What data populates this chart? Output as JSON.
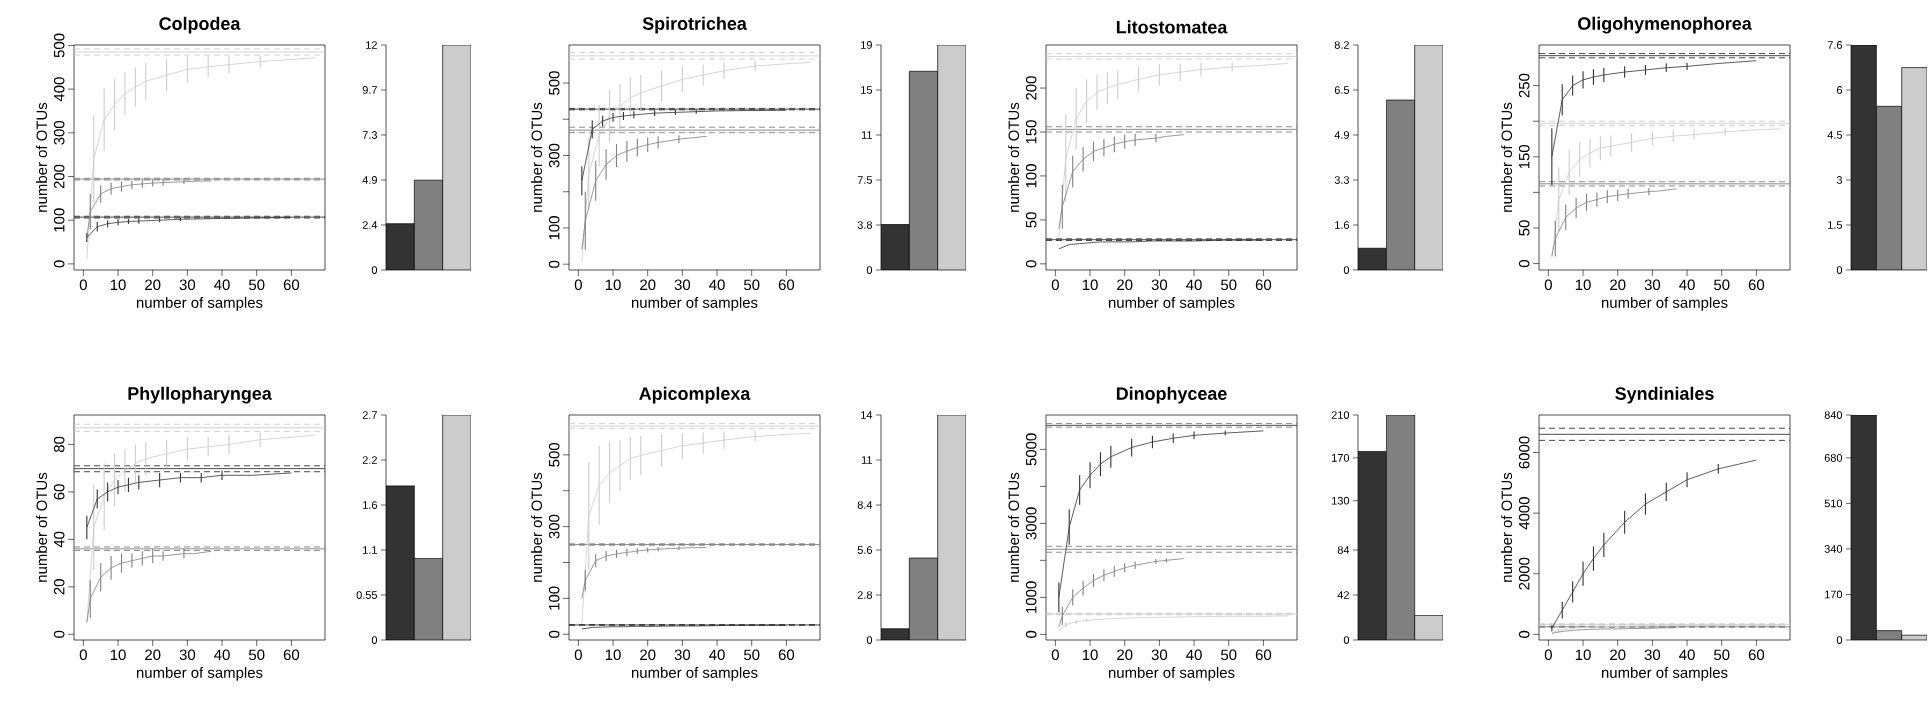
{
  "chart_data": [
    {
      "type": "line",
      "title": "Colpodea",
      "xlabel": "number of samples",
      "ylabel": "number of OTUs",
      "xlim": [
        -2.7,
        69.7
      ],
      "xticks": [
        0,
        10,
        20,
        30,
        40,
        50,
        60
      ],
      "ylim": [
        -14,
        501
      ],
      "yticks": [
        0,
        100,
        200,
        300,
        400,
        500
      ],
      "series": [
        {
          "color": "#333333",
          "x": [
            1,
            4,
            7,
            10,
            13,
            16,
            22,
            28,
            34,
            40,
            49,
            60
          ],
          "values": [
            60,
            85,
            92,
            95,
            97,
            98,
            100,
            102,
            103,
            104,
            105,
            106
          ],
          "errors": [
            10,
            11,
            8,
            7,
            6,
            6,
            5,
            4,
            null,
            null,
            null,
            null
          ]
        },
        {
          "color": "#808080",
          "x": [
            1,
            2,
            5,
            8,
            11,
            14,
            17,
            20,
            23,
            29,
            32,
            37
          ],
          "values": [
            60,
            120,
            160,
            172,
            177,
            181,
            183,
            185,
            186,
            188,
            189,
            190
          ],
          "errors": [
            null,
            40,
            20,
            14,
            12,
            10,
            9,
            8,
            7,
            5,
            null,
            null
          ]
        },
        {
          "color": "#cccccc",
          "x": [
            1,
            3,
            6,
            9,
            12,
            15,
            18,
            24,
            30,
            36,
            42,
            51,
            60,
            67
          ],
          "values": [
            10,
            240,
            330,
            365,
            390,
            405,
            418,
            432,
            445,
            451,
            456,
            463,
            468,
            472
          ],
          "errors": [
            null,
            100,
            72,
            58,
            50,
            45,
            42,
            36,
            30,
            24,
            19,
            14,
            null,
            null
          ]
        }
      ],
      "ref_lines": [
        {
          "axis": "y",
          "value": 107,
          "color": "#333333",
          "line_style": "solid"
        },
        {
          "axis": "y",
          "value": 105,
          "color": "#333333",
          "line_style": "dashed"
        },
        {
          "axis": "y",
          "value": 109,
          "color": "#333333",
          "line_style": "dashed"
        },
        {
          "axis": "y",
          "value": 194,
          "color": "#808080",
          "line_style": "solid"
        },
        {
          "axis": "y",
          "value": 192,
          "color": "#808080",
          "line_style": "dashed"
        },
        {
          "axis": "y",
          "value": 196,
          "color": "#808080",
          "line_style": "dashed"
        },
        {
          "axis": "y",
          "value": 485,
          "color": "#cccccc",
          "line_style": "solid"
        },
        {
          "axis": "y",
          "value": 478,
          "color": "#cccccc",
          "line_style": "dashed"
        },
        {
          "axis": "y",
          "value": 492,
          "color": "#cccccc",
          "line_style": "dashed"
        }
      ]
    },
    {
      "type": "bar",
      "categories": [
        null,
        null,
        null
      ],
      "values": [
        2.5,
        4.85,
        12.15
      ],
      "colors": [
        "#333333",
        "#808080",
        "#cccccc"
      ],
      "ylim": [
        0,
        12.15
      ],
      "yticks": [
        0,
        {
          "value": 2.43,
          "label": "2.4"
        },
        {
          "value": 4.86,
          "label": "4.9"
        },
        {
          "value": 7.29,
          "label": "7.3"
        },
        {
          "value": 9.72,
          "label": "9.7"
        },
        {
          "value": 12.15,
          "label": "12"
        }
      ],
      "tick_labels": "y"
    },
    {
      "type": "line",
      "title": "Spirotrichea",
      "xlabel": "number of samples",
      "ylabel": "number of OTUs",
      "xlim": [
        -2.7,
        69.7
      ],
      "xticks": [
        0,
        10,
        20,
        30,
        40,
        50,
        60
      ],
      "ylim": [
        -16,
        605
      ],
      "yticks": [
        0,
        100,
        {
          "value": 200,
          "label": null
        },
        300,
        {
          "value": 400,
          "label": null
        },
        500
      ],
      "series": [
        {
          "color": "#333333",
          "x": [
            1,
            4,
            7,
            10,
            13,
            16,
            22,
            28,
            34,
            40,
            49,
            60
          ],
          "values": [
            230,
            372,
            395,
            405,
            409,
            412,
            417,
            419,
            421,
            423,
            424,
            425
          ],
          "errors": [
            40,
            25,
            15,
            12,
            11,
            10,
            8,
            7,
            6,
            null,
            null,
            null
          ]
        },
        {
          "color": "#808080",
          "x": [
            1,
            2,
            5,
            8,
            11,
            14,
            17,
            20,
            23,
            29,
            32,
            37
          ],
          "values": [
            40,
            120,
            230,
            275,
            300,
            312,
            322,
            330,
            336,
            345,
            348,
            353
          ],
          "errors": [
            null,
            80,
            55,
            42,
            32,
            29,
            25,
            20,
            17,
            11,
            null,
            null
          ]
        },
        {
          "color": "#cccccc",
          "x": [
            1,
            3,
            6,
            9,
            12,
            15,
            18,
            24,
            30,
            36,
            42,
            51,
            60,
            67
          ],
          "values": [
            5,
            250,
            355,
            410,
            435,
            460,
            472,
            492,
            510,
            522,
            534,
            547,
            553,
            557
          ],
          "errors": [
            null,
            100,
            85,
            72,
            62,
            55,
            50,
            42,
            35,
            29,
            23,
            14,
            null,
            null
          ]
        }
      ],
      "ref_lines": [
        {
          "axis": "y",
          "value": 428,
          "color": "#333333",
          "line_style": "solid"
        },
        {
          "axis": "y",
          "value": 426,
          "color": "#333333",
          "line_style": "dashed"
        },
        {
          "axis": "y",
          "value": 430,
          "color": "#333333",
          "line_style": "dashed"
        },
        {
          "axis": "y",
          "value": 370,
          "color": "#808080",
          "line_style": "solid"
        },
        {
          "axis": "y",
          "value": 363,
          "color": "#808080",
          "line_style": "dashed"
        },
        {
          "axis": "y",
          "value": 378,
          "color": "#808080",
          "line_style": "dashed"
        },
        {
          "axis": "y",
          "value": 575,
          "color": "#cccccc",
          "line_style": "solid"
        },
        {
          "axis": "y",
          "value": 566,
          "color": "#cccccc",
          "line_style": "dashed"
        },
        {
          "axis": "y",
          "value": 584,
          "color": "#cccccc",
          "line_style": "dashed"
        }
      ]
    },
    {
      "type": "bar",
      "categories": [
        null,
        null,
        null
      ],
      "values": [
        3.8,
        16.6,
        18.8
      ],
      "colors": [
        "#333333",
        "#808080",
        "#cccccc"
      ],
      "ylim": [
        0,
        18.8
      ],
      "yticks": [
        0,
        {
          "value": 3.76,
          "label": "3.8"
        },
        {
          "value": 7.52,
          "label": "7.5"
        },
        {
          "value": 11.28,
          "label": "11"
        },
        {
          "value": 15.04,
          "label": "15"
        },
        {
          "value": 18.8,
          "label": "19"
        }
      ],
      "tick_labels": "y"
    },
    {
      "type": "line",
      "title": "Litostomatea",
      "xlabel": "number of samples",
      "ylabel": "number of OTUs",
      "xlim": [
        -2.7,
        69.7
      ],
      "xticks": [
        0,
        10,
        20,
        30,
        40,
        50,
        60
      ],
      "ylim": [
        -7,
        249
      ],
      "yticks": [
        0,
        50,
        100,
        150,
        200
      ],
      "series": [
        {
          "color": "#333333",
          "x": [
            1,
            4,
            7,
            10,
            13,
            16,
            22,
            28,
            34,
            40,
            49,
            60
          ],
          "values": [
            17,
            22,
            23,
            24,
            25,
            25,
            25,
            26,
            26,
            26,
            27,
            27
          ]
        },
        {
          "color": "#808080",
          "x": [
            1,
            2,
            5,
            8,
            11,
            14,
            17,
            20,
            23,
            29,
            32,
            37
          ],
          "values": [
            40,
            65,
            105,
            119,
            128,
            132,
            136,
            139,
            141,
            143,
            145,
            147
          ],
          "errors": [
            null,
            25,
            18,
            14,
            11,
            10,
            9,
            8,
            7,
            5,
            null,
            null
          ]
        },
        {
          "color": "#cccccc",
          "x": [
            1,
            3,
            6,
            9,
            12,
            15,
            18,
            24,
            30,
            36,
            42,
            51,
            60,
            67
          ],
          "values": [
            30,
            120,
            165,
            185,
            195,
            200,
            204,
            210,
            215,
            218,
            221,
            224,
            226,
            228
          ],
          "errors": [
            null,
            50,
            35,
            25,
            20,
            18,
            16,
            14,
            12,
            10,
            8,
            5,
            null,
            null
          ]
        }
      ],
      "ref_lines": [
        {
          "axis": "y",
          "value": 27.5,
          "color": "#333333",
          "line_style": "solid"
        },
        {
          "axis": "y",
          "value": 26.5,
          "color": "#333333",
          "line_style": "dashed"
        },
        {
          "axis": "y",
          "value": 28.5,
          "color": "#333333",
          "line_style": "dashed"
        },
        {
          "axis": "y",
          "value": 153,
          "color": "#808080",
          "line_style": "solid"
        },
        {
          "axis": "y",
          "value": 150,
          "color": "#808080",
          "line_style": "dashed"
        },
        {
          "axis": "y",
          "value": 156,
          "color": "#808080",
          "line_style": "dashed"
        },
        {
          "axis": "y",
          "value": 236,
          "color": "#cccccc",
          "line_style": "solid"
        },
        {
          "axis": "y",
          "value": 233,
          "color": "#cccccc",
          "line_style": "dashed"
        },
        {
          "axis": "y",
          "value": 239,
          "color": "#cccccc",
          "line_style": "dashed"
        }
      ]
    },
    {
      "type": "bar",
      "categories": [
        null,
        null,
        null
      ],
      "values": [
        0.79,
        6.17,
        8.17
      ],
      "colors": [
        "#333333",
        "#808080",
        "#cccccc"
      ],
      "ylim": [
        0,
        8.17
      ],
      "yticks": [
        0,
        {
          "value": 1.634,
          "label": "1.6"
        },
        {
          "value": 3.268,
          "label": "3.3"
        },
        {
          "value": 4.902,
          "label": "4.9"
        },
        {
          "value": 6.536,
          "label": "6.5"
        },
        {
          "value": 8.17,
          "label": "8.2"
        }
      ],
      "tick_labels": "y"
    },
    {
      "type": "line",
      "title": "Oligohymenophorea",
      "xlabel": "number of samples",
      "ylabel": "number of OTUs",
      "xlim": [
        -2.7,
        69.7
      ],
      "xticks": [
        0,
        10,
        20,
        30,
        40,
        50,
        60
      ],
      "ylim": [
        -9,
        307
      ],
      "yticks": [
        0,
        50,
        {
          "value": 100,
          "label": null
        },
        150,
        {
          "value": 200,
          "label": null
        },
        250
      ],
      "series": [
        {
          "color": "#333333",
          "x": [
            1,
            4,
            7,
            10,
            13,
            16,
            22,
            28,
            34,
            40,
            49,
            60
          ],
          "values": [
            150,
            230,
            250,
            258,
            262,
            265,
            269,
            272,
            275,
            277,
            281,
            285
          ],
          "errors": [
            40,
            22,
            14,
            12,
            11,
            10,
            8,
            7,
            6,
            5,
            null,
            null
          ]
        },
        {
          "color": "#808080",
          "x": [
            1,
            2,
            5,
            8,
            11,
            14,
            17,
            20,
            23,
            29,
            32,
            37
          ],
          "values": [
            10,
            35,
            65,
            78,
            86,
            90,
            94,
            96,
            98,
            101,
            102,
            105
          ],
          "errors": [
            null,
            25,
            18,
            14,
            12,
            10,
            9,
            8,
            7,
            5,
            null,
            null
          ]
        },
        {
          "color": "#cccccc",
          "x": [
            1,
            3,
            6,
            9,
            12,
            15,
            18,
            24,
            30,
            36,
            42,
            51,
            60,
            67
          ],
          "values": [
            10,
            90,
            128,
            146,
            155,
            162,
            165,
            170,
            176,
            179,
            181,
            185,
            188,
            189
          ],
          "errors": [
            null,
            45,
            32,
            24,
            20,
            17,
            15,
            13,
            10,
            8,
            7,
            5,
            null,
            null
          ]
        }
      ],
      "ref_lines": [
        {
          "axis": "y",
          "value": 292,
          "color": "#333333",
          "line_style": "solid"
        },
        {
          "axis": "y",
          "value": 289,
          "color": "#333333",
          "line_style": "dashed"
        },
        {
          "axis": "y",
          "value": 295,
          "color": "#333333",
          "line_style": "dashed"
        },
        {
          "axis": "y",
          "value": 112,
          "color": "#808080",
          "line_style": "solid"
        },
        {
          "axis": "y",
          "value": 109,
          "color": "#808080",
          "line_style": "dashed"
        },
        {
          "axis": "y",
          "value": 115,
          "color": "#808080",
          "line_style": "dashed"
        },
        {
          "axis": "y",
          "value": 197,
          "color": "#cccccc",
          "line_style": "solid"
        },
        {
          "axis": "y",
          "value": 194,
          "color": "#cccccc",
          "line_style": "dashed"
        },
        {
          "axis": "y",
          "value": 200,
          "color": "#cccccc",
          "line_style": "dashed"
        }
      ]
    },
    {
      "type": "bar",
      "categories": [
        null,
        null,
        null
      ],
      "values": [
        7.56,
        5.5,
        6.8
      ],
      "colors": [
        "#333333",
        "#808080",
        "#cccccc"
      ],
      "ylim": [
        0,
        7.56
      ],
      "yticks": [
        0,
        {
          "value": 1.512,
          "label": "1.5"
        },
        {
          "value": 3.024,
          "label": "3"
        },
        {
          "value": 4.536,
          "label": "4.5"
        },
        {
          "value": 6.048,
          "label": "6"
        },
        {
          "value": 7.56,
          "label": "7.6"
        }
      ],
      "tick_labels": "y"
    },
    {
      "type": "line",
      "title": "Phyllopharyngea",
      "xlabel": "number of samples",
      "ylabel": "number of OTUs",
      "xlim": [
        -2.7,
        69.7
      ],
      "xticks": [
        0,
        10,
        20,
        30,
        40,
        50,
        60
      ],
      "ylim": [
        -2.4,
        92.4
      ],
      "yticks": [
        0,
        20,
        40,
        60,
        80
      ],
      "series": [
        {
          "color": "#333333",
          "x": [
            1,
            4,
            7,
            10,
            13,
            16,
            22,
            28,
            34,
            40,
            49,
            60
          ],
          "values": [
            45,
            57,
            60,
            62,
            63,
            64,
            65,
            66,
            66,
            67,
            67,
            68
          ],
          "errors": [
            5,
            4,
            4,
            3,
            3,
            3,
            3,
            2,
            2,
            2,
            null,
            null
          ]
        },
        {
          "color": "#808080",
          "x": [
            1,
            2,
            5,
            8,
            11,
            14,
            17,
            20,
            23,
            29,
            32,
            37
          ],
          "values": [
            5,
            15,
            24,
            28,
            30,
            31,
            32,
            33,
            33,
            34,
            34,
            35
          ],
          "errors": [
            null,
            8,
            6,
            5,
            4,
            3,
            3,
            3,
            2,
            2,
            null,
            null
          ]
        },
        {
          "color": "#cccccc",
          "x": [
            1,
            3,
            6,
            9,
            12,
            15,
            18,
            24,
            30,
            36,
            42,
            51,
            60,
            67
          ],
          "values": [
            5,
            45,
            58,
            65,
            69,
            72,
            74,
            76,
            78,
            79,
            80,
            82,
            83,
            84
          ],
          "errors": [
            null,
            18,
            14,
            11,
            9,
            8,
            7,
            6,
            5,
            4,
            4,
            3,
            null,
            null
          ]
        }
      ],
      "ref_lines": [
        {
          "axis": "y",
          "value": 69.8,
          "color": "#333333",
          "line_style": "solid"
        },
        {
          "axis": "y",
          "value": 68.5,
          "color": "#333333",
          "line_style": "dashed"
        },
        {
          "axis": "y",
          "value": 71,
          "color": "#333333",
          "line_style": "dashed"
        },
        {
          "axis": "y",
          "value": 36,
          "color": "#808080",
          "line_style": "solid"
        },
        {
          "axis": "y",
          "value": 35.3,
          "color": "#808080",
          "line_style": "dashed"
        },
        {
          "axis": "y",
          "value": 36.8,
          "color": "#808080",
          "line_style": "dashed"
        },
        {
          "axis": "y",
          "value": 87,
          "color": "#cccccc",
          "line_style": "solid"
        },
        {
          "axis": "y",
          "value": 85.5,
          "color": "#cccccc",
          "line_style": "dashed"
        },
        {
          "axis": "y",
          "value": 88.5,
          "color": "#cccccc",
          "line_style": "dashed"
        }
      ]
    },
    {
      "type": "bar",
      "categories": [
        null,
        null,
        null
      ],
      "values": [
        1.87,
        0.99,
        2.73
      ],
      "colors": [
        "#333333",
        "#808080",
        "#cccccc"
      ],
      "ylim": [
        0,
        2.73
      ],
      "yticks": [
        0,
        {
          "value": 0.546,
          "label": "0.55"
        },
        {
          "value": 1.092,
          "label": "1.1"
        },
        {
          "value": 1.638,
          "label": "1.6"
        },
        {
          "value": 2.184,
          "label": "2.2"
        },
        {
          "value": 2.73,
          "label": "2.7"
        }
      ],
      "tick_labels": "y"
    },
    {
      "type": "line",
      "title": "Apicomplexa",
      "xlabel": "number of samples",
      "ylabel": "number of OTUs",
      "xlim": [
        -2.7,
        69.7
      ],
      "xticks": [
        0,
        10,
        20,
        30,
        40,
        50,
        60
      ],
      "ylim": [
        -16,
        611
      ],
      "yticks": [
        0,
        100,
        {
          "value": 200,
          "label": null
        },
        300,
        {
          "value": 400,
          "label": null
        },
        500
      ],
      "series": [
        {
          "color": "#333333",
          "x": [
            1,
            4,
            7,
            10,
            13,
            16,
            22,
            28,
            34,
            40,
            49,
            60
          ],
          "values": [
            15,
            19,
            20,
            21,
            21,
            22,
            22,
            23,
            23,
            24,
            25,
            25
          ]
        },
        {
          "color": "#808080",
          "x": [
            1,
            2,
            5,
            8,
            11,
            14,
            17,
            20,
            23,
            29,
            32,
            37
          ],
          "values": [
            100,
            150,
            205,
            218,
            224,
            228,
            232,
            235,
            237,
            240,
            241,
            242
          ],
          "errors": [
            null,
            30,
            18,
            14,
            11,
            10,
            8,
            7,
            6,
            5,
            null,
            null
          ]
        },
        {
          "color": "#cccccc",
          "x": [
            1,
            3,
            6,
            9,
            12,
            15,
            18,
            24,
            30,
            36,
            42,
            51,
            60,
            67
          ],
          "values": [
            30,
            330,
            415,
            450,
            470,
            490,
            498,
            512,
            525,
            533,
            541,
            551,
            557,
            560
          ],
          "errors": [
            null,
            150,
            110,
            85,
            70,
            60,
            55,
            45,
            35,
            30,
            24,
            14,
            null,
            null
          ]
        }
      ],
      "ref_lines": [
        {
          "axis": "y",
          "value": 26,
          "color": "#333333",
          "line_style": "solid"
        },
        {
          "axis": "y",
          "value": 25,
          "color": "#333333",
          "line_style": "dashed"
        },
        {
          "axis": "y",
          "value": 27,
          "color": "#333333",
          "line_style": "dashed"
        },
        {
          "axis": "y",
          "value": 250,
          "color": "#808080",
          "line_style": "solid"
        },
        {
          "axis": "y",
          "value": 248,
          "color": "#808080",
          "line_style": "dashed"
        },
        {
          "axis": "y",
          "value": 252,
          "color": "#808080",
          "line_style": "dashed"
        },
        {
          "axis": "y",
          "value": 580,
          "color": "#cccccc",
          "line_style": "solid"
        },
        {
          "axis": "y",
          "value": 573,
          "color": "#cccccc",
          "line_style": "dashed"
        },
        {
          "axis": "y",
          "value": 587,
          "color": "#cccccc",
          "line_style": "dashed"
        }
      ]
    },
    {
      "type": "bar",
      "categories": [
        null,
        null,
        null
      ],
      "values": [
        0.7,
        5.1,
        14
      ],
      "colors": [
        "#333333",
        "#808080",
        "#cccccc"
      ],
      "ylim": [
        0,
        14
      ],
      "yticks": [
        0,
        2.8,
        5.6,
        8.4,
        {
          "value": 11.2,
          "label": "11"
        },
        14
      ],
      "tick_labels": "y"
    },
    {
      "type": "line",
      "title": "Dinophyceae",
      "xlabel": "number of samples",
      "ylabel": "number of OTUs",
      "xlim": [
        -2.7,
        69.7
      ],
      "xticks": [
        0,
        10,
        20,
        30,
        40,
        50,
        60
      ],
      "ylim": [
        -152,
        5929
      ],
      "yticks": [
        0,
        1000,
        {
          "value": 2000,
          "label": null
        },
        3000,
        {
          "value": 4000,
          "label": null
        },
        5000
      ],
      "series": [
        {
          "color": "#333333",
          "x": [
            1,
            4,
            7,
            10,
            13,
            16,
            22,
            28,
            34,
            40,
            49,
            60
          ],
          "values": [
            1000,
            2900,
            3900,
            4300,
            4600,
            4800,
            5050,
            5200,
            5300,
            5380,
            5440,
            5500
          ],
          "errors": [
            400,
            480,
            400,
            350,
            320,
            300,
            240,
            170,
            130,
            100,
            60,
            null
          ]
        },
        {
          "color": "#808080",
          "x": [
            1,
            2,
            5,
            8,
            11,
            14,
            17,
            20,
            23,
            29,
            32,
            37
          ],
          "values": [
            200,
            500,
            1000,
            1250,
            1450,
            1600,
            1700,
            1800,
            1870,
            1970,
            2000,
            2050
          ],
          "errors": [
            null,
            250,
            220,
            200,
            180,
            160,
            140,
            120,
            100,
            70,
            55,
            null
          ]
        },
        {
          "color": "#cccccc",
          "x": [
            1,
            3,
            6,
            9,
            12,
            15,
            18,
            24,
            30,
            36,
            42,
            51,
            60,
            67
          ],
          "values": [
            100,
            260,
            340,
            380,
            400,
            420,
            430,
            450,
            460,
            470,
            480,
            490,
            490,
            500
          ],
          "errors": [
            null,
            70,
            55,
            45,
            null,
            null,
            null,
            null,
            null,
            null,
            null,
            null,
            null,
            null
          ]
        }
      ],
      "ref_lines": [
        {
          "axis": "y",
          "value": 5650,
          "color": "#333333",
          "line_style": "solid"
        },
        {
          "axis": "y",
          "value": 5600,
          "color": "#808080",
          "line_style": "dashed"
        },
        {
          "axis": "y",
          "value": 5700,
          "color": "#808080",
          "line_style": "dashed"
        },
        {
          "axis": "y",
          "value": 2300,
          "color": "#808080",
          "line_style": "solid"
        },
        {
          "axis": "y",
          "value": 2220,
          "color": "#808080",
          "line_style": "dashed"
        },
        {
          "axis": "y",
          "value": 2380,
          "color": "#808080",
          "line_style": "dashed"
        },
        {
          "axis": "y",
          "value": 550,
          "color": "#cccccc",
          "line_style": "solid"
        },
        {
          "axis": "y",
          "value": 530,
          "color": "#cccccc",
          "line_style": "dashed"
        },
        {
          "axis": "y",
          "value": 570,
          "color": "#cccccc",
          "line_style": "dashed"
        }
      ]
    },
    {
      "type": "bar",
      "categories": [
        null,
        null,
        null
      ],
      "values": [
        176,
        210,
        23
      ],
      "colors": [
        "#333333",
        "#808080",
        "#cccccc"
      ],
      "ylim": [
        0,
        210
      ],
      "yticks": [
        0,
        42,
        84,
        130,
        170,
        210
      ],
      "tick_labels": "y"
    },
    {
      "type": "line",
      "title": "Syndiniales",
      "xlabel": "number of samples",
      "ylabel": "number of OTUs",
      "xlim": [
        -2.7,
        69.7
      ],
      "xticks": [
        0,
        10,
        20,
        30,
        40,
        50,
        60
      ],
      "ylim": [
        -186,
        7237
      ],
      "yticks": [
        0,
        2000,
        4000,
        6000
      ],
      "series": [
        {
          "color": "#333333",
          "x": [
            1,
            4,
            7,
            10,
            13,
            16,
            22,
            28,
            34,
            40,
            49,
            60
          ],
          "values": [
            200,
            800,
            1400,
            2000,
            2500,
            2950,
            3700,
            4300,
            4700,
            5100,
            5460,
            5750
          ],
          "errors": [
            100,
            280,
            350,
            400,
            400,
            400,
            380,
            350,
            300,
            250,
            160,
            null
          ]
        },
        {
          "color": "#808080",
          "x": [
            1,
            2,
            5,
            8,
            11,
            14,
            17,
            20,
            23,
            29,
            32,
            37
          ],
          "values": [
            30,
            60,
            110,
            140,
            160,
            170,
            180,
            180,
            190,
            200,
            210,
            220
          ]
        },
        {
          "color": "#cccccc",
          "x": [
            1,
            3,
            6,
            9,
            12,
            15,
            18,
            24,
            30,
            36,
            42,
            51,
            60,
            67
          ],
          "values": [
            50,
            130,
            180,
            220,
            240,
            250,
            260,
            270,
            280,
            290,
            290,
            300,
            300,
            300
          ],
          "errors": [
            null,
            60,
            null,
            null,
            null,
            null,
            null,
            null,
            null,
            null,
            null,
            null,
            null,
            null
          ]
        }
      ],
      "ref_lines": [
        {
          "axis": "y",
          "value": 6600,
          "color": "#333333",
          "line_style": "solid"
        },
        {
          "axis": "y",
          "value": 6400,
          "color": "#333333",
          "line_style": "dashed"
        },
        {
          "axis": "y",
          "value": 6800,
          "color": "#333333",
          "line_style": "dashed"
        },
        {
          "axis": "y",
          "value": 250,
          "color": "#808080",
          "line_style": "solid"
        },
        {
          "axis": "y",
          "value": 235,
          "color": "#808080",
          "line_style": "dashed"
        },
        {
          "axis": "y",
          "value": 265,
          "color": "#808080",
          "line_style": "dashed"
        },
        {
          "axis": "y",
          "value": 330,
          "color": "#cccccc",
          "line_style": "solid"
        },
        {
          "axis": "y",
          "value": 310,
          "color": "#cccccc",
          "line_style": "dashed"
        },
        {
          "axis": "y",
          "value": 350,
          "color": "#cccccc",
          "line_style": "dashed"
        }
      ]
    },
    {
      "type": "bar",
      "categories": [
        null,
        null,
        null
      ],
      "values": [
        840,
        35,
        18
      ],
      "colors": [
        "#333333",
        "#808080",
        "#cccccc"
      ],
      "ylim": [
        0,
        840
      ],
      "yticks": [
        0,
        170,
        340,
        510,
        680,
        840
      ],
      "tick_labels": "y"
    }
  ]
}
